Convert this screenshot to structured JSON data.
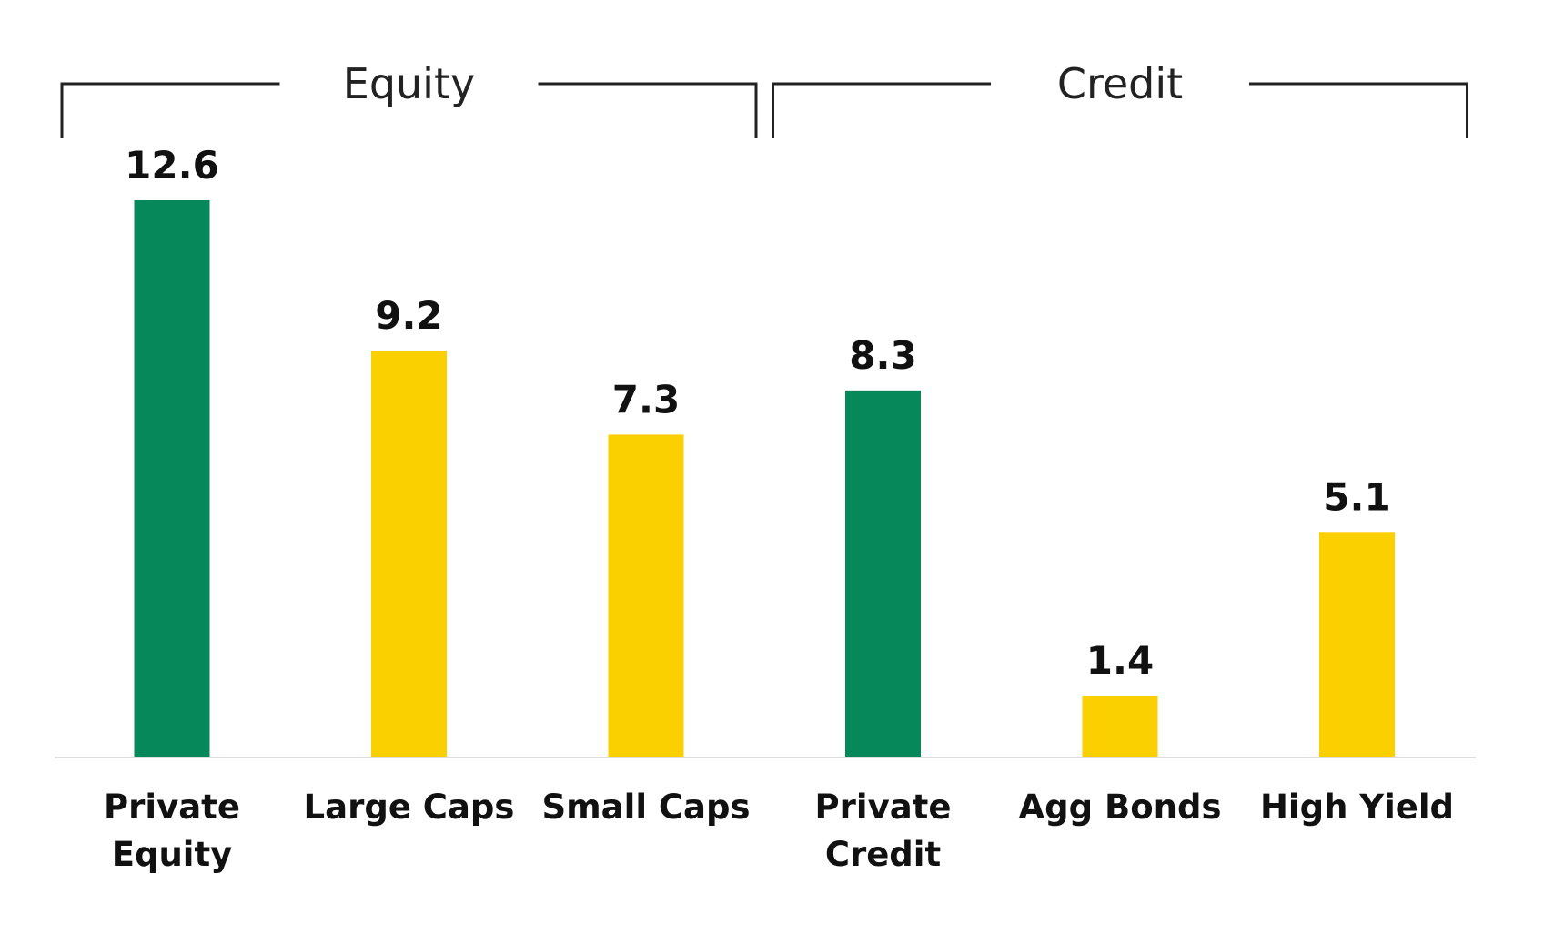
{
  "chart_data": {
    "type": "bar",
    "title": "",
    "xlabel": "",
    "ylabel": "",
    "ylim": [
      0,
      12.6
    ],
    "grid": false,
    "categories": [
      [
        "Private",
        "Equity"
      ],
      [
        "Large Caps"
      ],
      [
        "Small Caps"
      ],
      [
        "Private",
        "Credit"
      ],
      [
        "Agg Bonds"
      ],
      [
        "High Yield"
      ]
    ],
    "values": [
      12.6,
      9.2,
      7.3,
      8.3,
      1.4,
      5.1
    ],
    "value_labels": [
      "12.6",
      "9.2",
      "7.3",
      "8.3",
      "1.4",
      "5.1"
    ],
    "bar_kinds": [
      "private",
      "public",
      "public",
      "private",
      "public",
      "public"
    ],
    "groups": [
      {
        "label": "Equity",
        "start": 0,
        "end": 2
      },
      {
        "label": "Credit",
        "start": 3,
        "end": 5
      }
    ],
    "colors": {
      "private": "#06885A",
      "public": "#FAD000",
      "bracket": "#222222",
      "baseline": "#dddddd"
    }
  }
}
